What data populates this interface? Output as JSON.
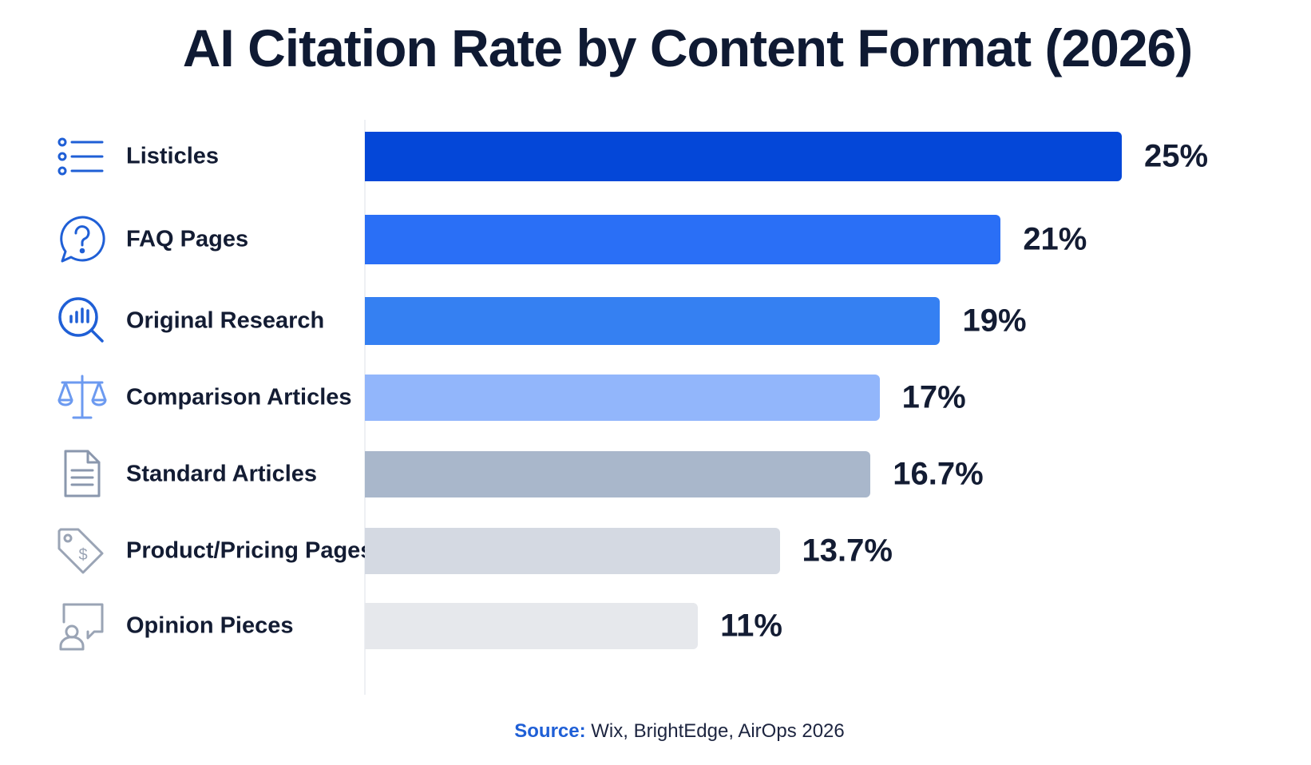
{
  "chart_data": {
    "type": "bar",
    "orientation": "horizontal",
    "title": "AI Citation Rate by Content Format (2026)",
    "categories": [
      "Listicles",
      "FAQ Pages",
      "Original Research",
      "Comparison Articles",
      "Standard Articles",
      "Product/Pricing Pages",
      "Opinion Pieces"
    ],
    "values": [
      25,
      21,
      19,
      17,
      16.7,
      13.7,
      11
    ],
    "value_labels": [
      "25%",
      "21%",
      "19%",
      "17%",
      "16.7%",
      "13.7%",
      "11%"
    ],
    "unit": "%",
    "xlim": [
      0,
      25
    ],
    "grid": false,
    "legend": "none",
    "bar_colors": [
      "#0447d8",
      "#2a6ff6",
      "#3580f2",
      "#92b6fb",
      "#a9b7cb",
      "#d4d9e2",
      "#e6e8ec"
    ]
  },
  "icons": [
    {
      "name": "list-icon",
      "color": "#1f5fd6"
    },
    {
      "name": "question-bubble-icon",
      "color": "#1f5fd6"
    },
    {
      "name": "research-magnifier-icon",
      "color": "#1f5fd6"
    },
    {
      "name": "balance-scale-icon",
      "color": "#6c9af0"
    },
    {
      "name": "document-icon",
      "color": "#8a97ad"
    },
    {
      "name": "price-tag-icon",
      "color": "#9aa4b5"
    },
    {
      "name": "opinion-user-icon",
      "color": "#9aa4b5"
    }
  ],
  "source": {
    "label": "Source:",
    "text": " Wix, BrightEdge, AirOps 2026"
  }
}
